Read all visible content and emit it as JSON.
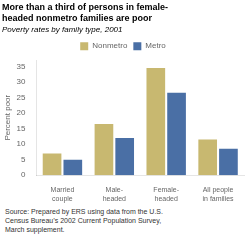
{
  "chart_data": {
    "type": "bar",
    "title": "More than a third of persons in female-\nheaded nonmetro families are poor",
    "subtitle": "Poverty rates by family type, 2001",
    "y_label": "Percent poor",
    "categories": [
      "Married\ncouple",
      "Male-\nheaded",
      "Female-\nheaded",
      "All people\nin families"
    ],
    "series": [
      {
        "name": "Nonmetro",
        "color": "#C8B870",
        "values": [
          7,
          16.5,
          34.5,
          11.5
        ]
      },
      {
        "name": "Metro",
        "color": "#4A6FA5",
        "values": [
          5,
          12,
          26.5,
          8.5
        ]
      }
    ],
    "ylim": [
      0,
      37
    ],
    "yticks": [
      0,
      5,
      10,
      15,
      20,
      25,
      30,
      35
    ],
    "grid": false,
    "legend": "top",
    "source": "Source:  Prepared by ERS using data from the U.S.\nCensus Bureau’s 2002 Current Population Survey,\nMarch supplement."
  }
}
